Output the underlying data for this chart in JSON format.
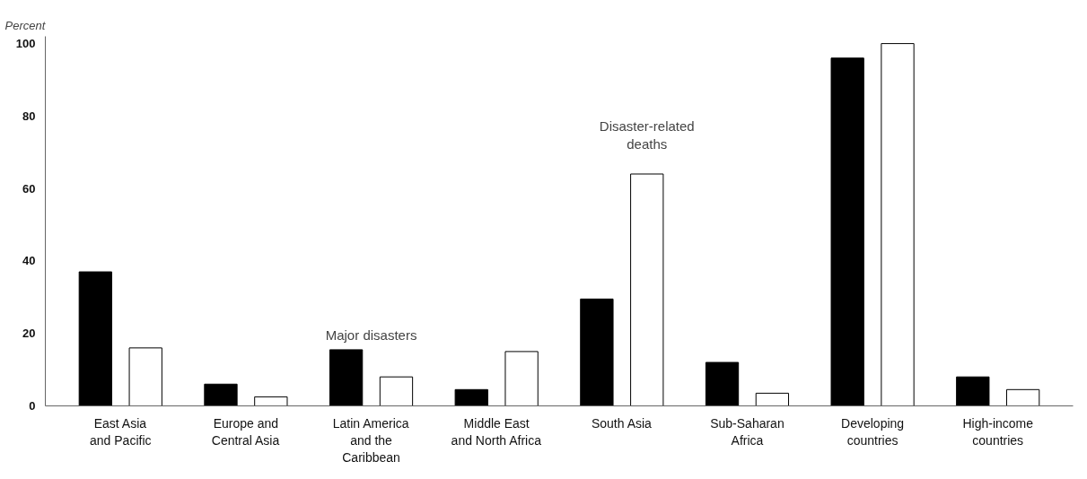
{
  "chart_data": {
    "type": "bar",
    "ylabel": "Percent",
    "categories": [
      "East Asia\nand Pacific",
      "Europe and\nCentral Asia",
      "Latin America\nand the\nCaribbean",
      "Middle East\nand North Africa",
      "South Asia",
      "Sub-Saharan\nAfrica",
      "Developing\ncountries",
      "High-income\ncountries"
    ],
    "series": [
      {
        "name": "Major disasters",
        "color": "#000000",
        "values": [
          37,
          6,
          15.5,
          4.5,
          29.5,
          12,
          96,
          8
        ]
      },
      {
        "name": "Disaster-related\ndeaths",
        "color": "#ffffff",
        "values": [
          16,
          2.5,
          8,
          15,
          64,
          3.5,
          100,
          4.5
        ]
      }
    ],
    "ylim": [
      0,
      102
    ],
    "yticks": [
      0,
      20,
      40,
      60,
      80,
      100
    ],
    "grid": false
  }
}
